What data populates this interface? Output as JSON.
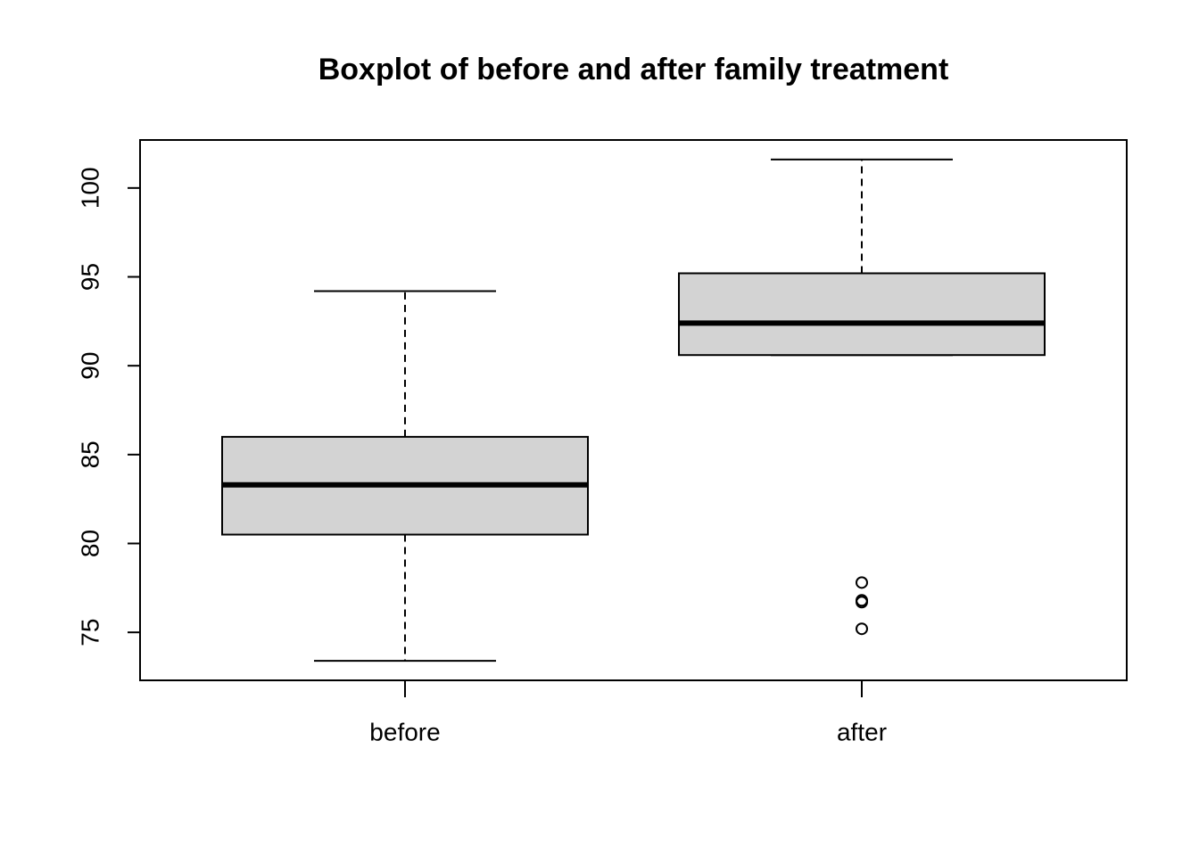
{
  "chart_data": {
    "type": "box",
    "title": "Boxplot of before and after family treatment",
    "categories": [
      "before",
      "after"
    ],
    "boxes": [
      {
        "min": 73.4,
        "q1": 80.5,
        "median": 83.3,
        "q3": 86.0,
        "max": 94.2,
        "outliers": []
      },
      {
        "min": 90.6,
        "q1": 90.6,
        "median": 92.4,
        "q3": 95.2,
        "max": 101.6,
        "outliers": [
          77.8,
          76.8,
          76.7,
          75.2
        ]
      }
    ],
    "color": "#d3d3d3",
    "ylim": [
      72.3,
      102.7
    ],
    "yticks": [
      75,
      80,
      85,
      90,
      95,
      100
    ]
  }
}
